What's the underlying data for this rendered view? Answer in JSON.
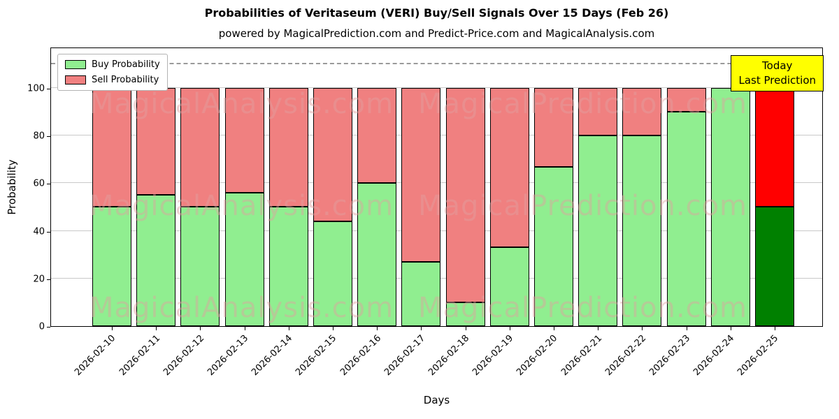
{
  "title": "Probabilities of Veritaseum (VERI) Buy/Sell Signals Over 15 Days (Feb 26)",
  "subtitle": "powered by MagicalPrediction.com and Predict-Price.com and MagicalAnalysis.com",
  "legend": [
    {
      "label": "Buy Probability",
      "color": "#90EE90"
    },
    {
      "label": "Sell Probability",
      "color": "#F08080"
    }
  ],
  "annotation_box": {
    "lines": [
      "Today",
      "Last Prediction"
    ],
    "bg": "#FFFF00",
    "border": "#000000"
  },
  "watermarks": {
    "left": "MagicalAnalysis.com",
    "right": "MagicalPrediction.com"
  },
  "chart_data": {
    "type": "bar",
    "stacked": true,
    "title": "Probabilities of Veritaseum (VERI) Buy/Sell Signals Over 15 Days (Feb 26)",
    "xlabel": "Days",
    "ylabel": "Probability",
    "categories": [
      "2026-02-10",
      "2026-02-11",
      "2026-02-12",
      "2026-02-13",
      "2026-02-14",
      "2026-02-15",
      "2026-02-16",
      "2026-02-17",
      "2026-02-18",
      "2026-02-19",
      "2026-02-20",
      "2026-02-21",
      "2026-02-22",
      "2026-02-23",
      "2026-02-24",
      "2026-02-25"
    ],
    "series": [
      {
        "name": "Buy Probability",
        "color": "#90EE90",
        "final_bar_color": "#008000",
        "values": [
          50,
          55,
          50,
          56,
          50,
          44,
          60,
          27,
          10,
          33,
          67,
          80,
          80,
          90,
          100,
          50
        ]
      },
      {
        "name": "Sell Probability",
        "color": "#F08080",
        "final_bar_color": "#FF0000",
        "values": [
          50,
          45,
          50,
          44,
          50,
          56,
          40,
          73,
          90,
          67,
          33,
          20,
          20,
          10,
          0,
          50
        ]
      }
    ],
    "yticks": [
      0,
      20,
      40,
      60,
      80,
      100
    ],
    "ylim": [
      0,
      116.7
    ],
    "dashed_line_y": 110,
    "grid": true,
    "legend_position": "upper left"
  }
}
